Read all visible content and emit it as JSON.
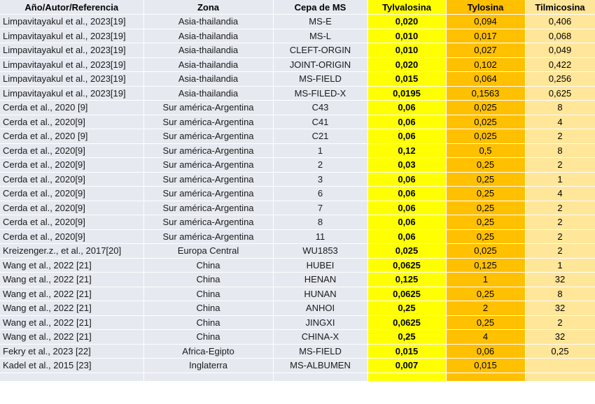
{
  "headers": {
    "author": "Año/Autor/Referencia",
    "zone": "Zona",
    "strain": "Cepa de  MS",
    "tylvalosina": "Tylvalosina",
    "tylosina": "Tylosina",
    "tilmicosina": "Tilmicosina"
  },
  "rows": [
    {
      "author": "Limpavitayakul et al., 2023[19]",
      "zone": "Asia-thailandia",
      "strain": "MS-E",
      "tylv": "0,020",
      "tylo": "0,094",
      "tilm": "0,406"
    },
    {
      "author": "Limpavitayakul et al., 2023[19]",
      "zone": "Asia-thailandia",
      "strain": "MS-L",
      "tylv": "0,010",
      "tylo": "0,017",
      "tilm": "0,068"
    },
    {
      "author": "Limpavitayakul et al., 2023[19]",
      "zone": "Asia-thailandia",
      "strain": "CLEFT-ORGIN",
      "tylv": "0,010",
      "tylo": "0,027",
      "tilm": "0,049"
    },
    {
      "author": "Limpavitayakul et al., 2023[19]",
      "zone": "Asia-thailandia",
      "strain": "JOINT-ORIGIN",
      "tylv": "0,020",
      "tylo": "0,102",
      "tilm": "0,422"
    },
    {
      "author": "Limpavitayakul et al., 2023[19]",
      "zone": "Asia-thailandia",
      "strain": "MS-FIELD",
      "tylv": "0,015",
      "tylo": "0,064",
      "tilm": "0,256"
    },
    {
      "author": "Limpavitayakul et al., 2023[19]",
      "zone": "Asia-thailandia",
      "strain": "MS-FILED-X",
      "tylv": "0,0195",
      "tylo": "0,1563",
      "tilm": "0,625"
    },
    {
      "author": "Cerda et al., 2020 [9]",
      "zone": "Sur américa-Argentina",
      "strain": "C43",
      "tylv": "0,06",
      "tylo": "0,025",
      "tilm": "8"
    },
    {
      "author": "Cerda et al., 2020[9]",
      "zone": "Sur américa-Argentina",
      "strain": "C41",
      "tylv": "0,06",
      "tylo": "0,025",
      "tilm": "4"
    },
    {
      "author": "Cerda et al., 2020 [9]",
      "zone": "Sur américa-Argentina",
      "strain": "C21",
      "tylv": "0,06",
      "tylo": "0,025",
      "tilm": "2"
    },
    {
      "author": "Cerda et al., 2020[9]",
      "zone": "Sur américa-Argentina",
      "strain": "1",
      "tylv": "0,12",
      "tylo": "0,5",
      "tilm": "8"
    },
    {
      "author": "Cerda et al., 2020[9]",
      "zone": "Sur américa-Argentina",
      "strain": "2",
      "tylv": "0,03",
      "tylo": "0,25",
      "tilm": "2"
    },
    {
      "author": "Cerda et al., 2020[9]",
      "zone": "Sur américa-Argentina",
      "strain": "3",
      "tylv": "0,06",
      "tylo": "0,25",
      "tilm": "1"
    },
    {
      "author": "Cerda et al., 2020[9]",
      "zone": "Sur américa-Argentina",
      "strain": "6",
      "tylv": "0,06",
      "tylo": "0,25",
      "tilm": "4"
    },
    {
      "author": "Cerda et al., 2020[9]",
      "zone": "Sur américa-Argentina",
      "strain": "7",
      "tylv": "0,06",
      "tylo": "0,25",
      "tilm": "2"
    },
    {
      "author": "Cerda et al., 2020[9]",
      "zone": "Sur américa-Argentina",
      "strain": "8",
      "tylv": "0,06",
      "tylo": "0,25",
      "tilm": "2"
    },
    {
      "author": "Cerda et al., 2020[9]",
      "zone": "Sur américa-Argentina",
      "strain": "11",
      "tylv": "0,06",
      "tylo": "0,25",
      "tilm": "2"
    },
    {
      "author": "Kreizenger.z., et al., 2017[20]",
      "zone": "Europa Central",
      "strain": "WU1853",
      "tylv": "0,025",
      "tylo": "0,025",
      "tilm": "2"
    },
    {
      "author": "Wang et al., 2022 [21]",
      "zone": "China",
      "strain": "HUBEI",
      "tylv": "0,0625",
      "tylo": "0,125",
      "tilm": "1"
    },
    {
      "author": "Wang et al., 2022 [21]",
      "zone": "China",
      "strain": "HENAN",
      "tylv": "0,125",
      "tylo": "1",
      "tilm": "32"
    },
    {
      "author": "Wang et al., 2022 [21]",
      "zone": "China",
      "strain": "HUNAN",
      "tylv": "0,0625",
      "tylo": "0,25",
      "tilm": "8"
    },
    {
      "author": "Wang et al., 2022 [21]",
      "zone": "China",
      "strain": "ANHOI",
      "tylv": "0,25",
      "tylo": "2",
      "tilm": "32"
    },
    {
      "author": "Wang et al., 2022 [21]",
      "zone": "China",
      "strain": "JINGXI",
      "tylv": "0,0625",
      "tylo": "0,25",
      "tilm": "2"
    },
    {
      "author": "Wang et al., 2022 [21]",
      "zone": "China",
      "strain": "CHINA-X",
      "tylv": "0,25",
      "tylo": "4",
      "tilm": "32"
    },
    {
      "author": "Fekry et al., 2023 [22]",
      "zone": "Africa-Egipto",
      "strain": "MS-FIELD",
      "tylv": "0,015",
      "tylo": "0,06",
      "tilm": "0,25"
    },
    {
      "author": "Kadel et al., 2015 [23]",
      "zone": "Inglaterra",
      "strain": "MS-ALBUMEN",
      "tylv": "0,007",
      "tylo": "0,015",
      "tilm": ""
    }
  ]
}
